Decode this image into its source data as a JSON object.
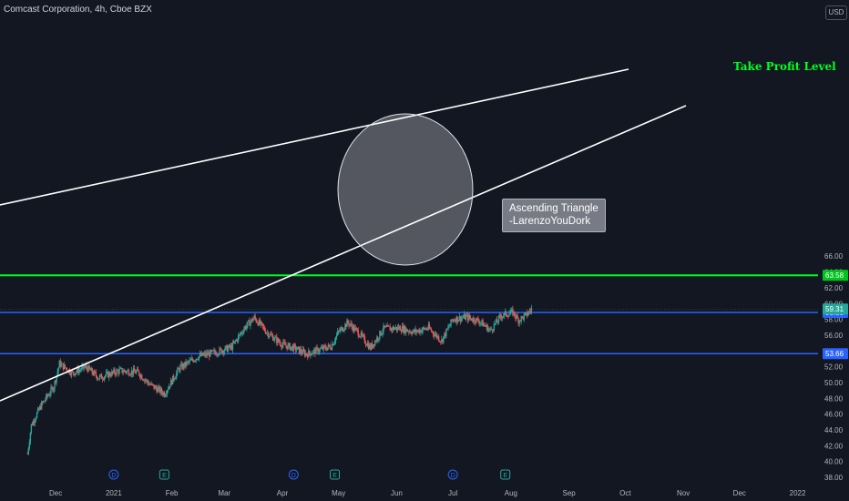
{
  "header": {
    "symbol_label": "Comcast Corporation, 4h, Cboe BZX",
    "currency": "USD"
  },
  "colors": {
    "background": "#131722",
    "up_candle": "#26a69a",
    "down_candle": "#ef5350",
    "horizontal_level_line": "#2962ff",
    "take_profit_line": "#00ff22",
    "trend_line": "#ffffff",
    "last_price_badge": "#26a69a"
  },
  "chart_data": {
    "type": "candlestick",
    "title": "Comcast Corporation, 4h, Cboe BZX",
    "ylim": [
      38,
      67
    ],
    "y_ticks": [
      "38.00",
      "40.00",
      "42.00",
      "44.00",
      "46.00",
      "48.00",
      "50.00",
      "52.00",
      "54.00",
      "56.00",
      "58.00",
      "60.00",
      "62.00",
      "64.00",
      "66.00"
    ],
    "x_ticks": [
      "Dec",
      "2021",
      "Feb",
      "Mar",
      "Apr",
      "May",
      "Jun",
      "Jul",
      "Aug",
      "Sep",
      "Oct",
      "Nov",
      "Dec",
      "2022"
    ],
    "grid": false,
    "price_path": [
      {
        "x": "Nov 16, 2020",
        "y": 41.0
      },
      {
        "x": "Nov 18, 2020",
        "y": 44.6
      },
      {
        "x": "Nov 23, 2020",
        "y": 47.0
      },
      {
        "x": "Nov 30, 2020",
        "y": 49.5
      },
      {
        "x": "Dec 03, 2020",
        "y": 52.4
      },
      {
        "x": "Dec 10, 2020",
        "y": 51.2
      },
      {
        "x": "Dec 17, 2020",
        "y": 52.0
      },
      {
        "x": "Dec 24, 2020",
        "y": 50.6
      },
      {
        "x": "Jan 04, 2021",
        "y": 51.5
      },
      {
        "x": "Jan 14, 2021",
        "y": 51.3
      },
      {
        "x": "Jan 20, 2021",
        "y": 49.8
      },
      {
        "x": "Jan 28, 2021",
        "y": 48.6
      },
      {
        "x": "Feb 05, 2021",
        "y": 51.8
      },
      {
        "x": "Feb 15, 2021",
        "y": 53.3
      },
      {
        "x": "Feb 24, 2021",
        "y": 53.8
      },
      {
        "x": "Mar 05, 2021",
        "y": 54.5
      },
      {
        "x": "Mar 12, 2021",
        "y": 57.0
      },
      {
        "x": "Mar 17, 2021",
        "y": 58.2
      },
      {
        "x": "Mar 24, 2021",
        "y": 56.3
      },
      {
        "x": "Apr 01, 2021",
        "y": 54.8
      },
      {
        "x": "Apr 08, 2021",
        "y": 54.3
      },
      {
        "x": "Apr 14, 2021",
        "y": 53.6
      },
      {
        "x": "Apr 20, 2021",
        "y": 54.1
      },
      {
        "x": "Apr 27, 2021",
        "y": 54.6
      },
      {
        "x": "May 01, 2021",
        "y": 56.4
      },
      {
        "x": "May 06, 2021",
        "y": 57.6
      },
      {
        "x": "May 12, 2021",
        "y": 56.2
      },
      {
        "x": "May 18, 2021",
        "y": 54.4
      },
      {
        "x": "May 25, 2021",
        "y": 56.8
      },
      {
        "x": "Jun 03, 2021",
        "y": 56.9
      },
      {
        "x": "Jun 10, 2021",
        "y": 56.4
      },
      {
        "x": "Jun 18, 2021",
        "y": 56.9
      },
      {
        "x": "Jun 25, 2021",
        "y": 55.3
      },
      {
        "x": "Jul 01, 2021",
        "y": 58.0
      },
      {
        "x": "Jul 08, 2021",
        "y": 58.3
      },
      {
        "x": "Jul 15, 2021",
        "y": 57.8
      },
      {
        "x": "Jul 21, 2021",
        "y": 56.6
      },
      {
        "x": "Jul 27, 2021",
        "y": 58.5
      },
      {
        "x": "Aug 02, 2021",
        "y": 58.9
      },
      {
        "x": "Aug 05, 2021",
        "y": 57.9
      },
      {
        "x": "Aug 09, 2021",
        "y": 58.5
      },
      {
        "x": "Aug 12, 2021",
        "y": 59.31
      }
    ],
    "levels": [
      {
        "label": "63.58",
        "value": 63.58,
        "role": "take profit",
        "color": "#00ff22"
      },
      {
        "label": "58.88",
        "value": 58.88,
        "color": "#2962ff"
      },
      {
        "label": "53.66",
        "value": 53.66,
        "color": "#2962ff"
      }
    ],
    "last_price": {
      "label": "59.31",
      "value": 59.31
    },
    "annotations": {
      "take_profit_text": "Take Profit Level",
      "note_line1": "Ascending Triangle",
      "note_line2": "-LarenzoYouDork"
    },
    "event_markers": [
      {
        "x": "Jan 01, 2021",
        "label": "D"
      },
      {
        "x": "Jan 28, 2021",
        "label": "E"
      },
      {
        "x": "Apr 07, 2021",
        "label": "D"
      },
      {
        "x": "Apr 29, 2021",
        "label": "E"
      },
      {
        "x": "Jul 01, 2021",
        "label": "D"
      },
      {
        "x": "Jul 29, 2021",
        "label": "E"
      }
    ]
  }
}
